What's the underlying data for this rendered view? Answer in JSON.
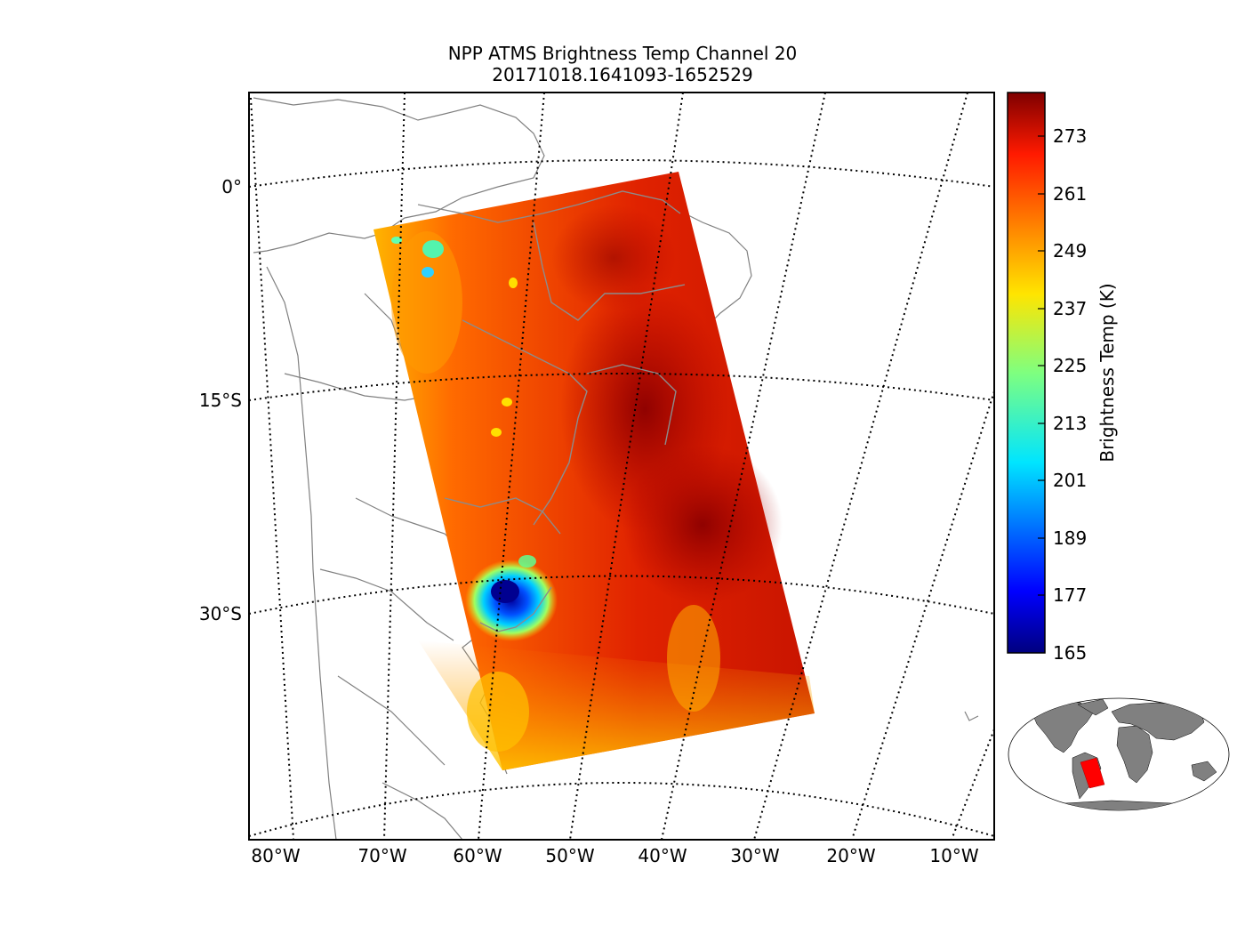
{
  "title": {
    "line1": "NPP ATMS Brightness Temp Channel 20",
    "line2": "20171018.1641093-1652529"
  },
  "map": {
    "latitude_labels": [
      "0°",
      "15°S",
      "30°S"
    ],
    "longitude_labels": [
      "80°W",
      "70°W",
      "60°W",
      "50°W",
      "40°W",
      "30°W",
      "20°W",
      "10°W"
    ],
    "coastline_color": "#808080",
    "graticule": "dotted"
  },
  "colorbar": {
    "label": "Brightness Temp (K)",
    "ticks": [
      "273",
      "261",
      "249",
      "237",
      "225",
      "213",
      "201",
      "189",
      "177",
      "165"
    ],
    "min": 165,
    "max": 280,
    "colormap": "jet"
  },
  "inset_map": {
    "land_color": "#808080",
    "swath_color": "#ff0000"
  }
}
